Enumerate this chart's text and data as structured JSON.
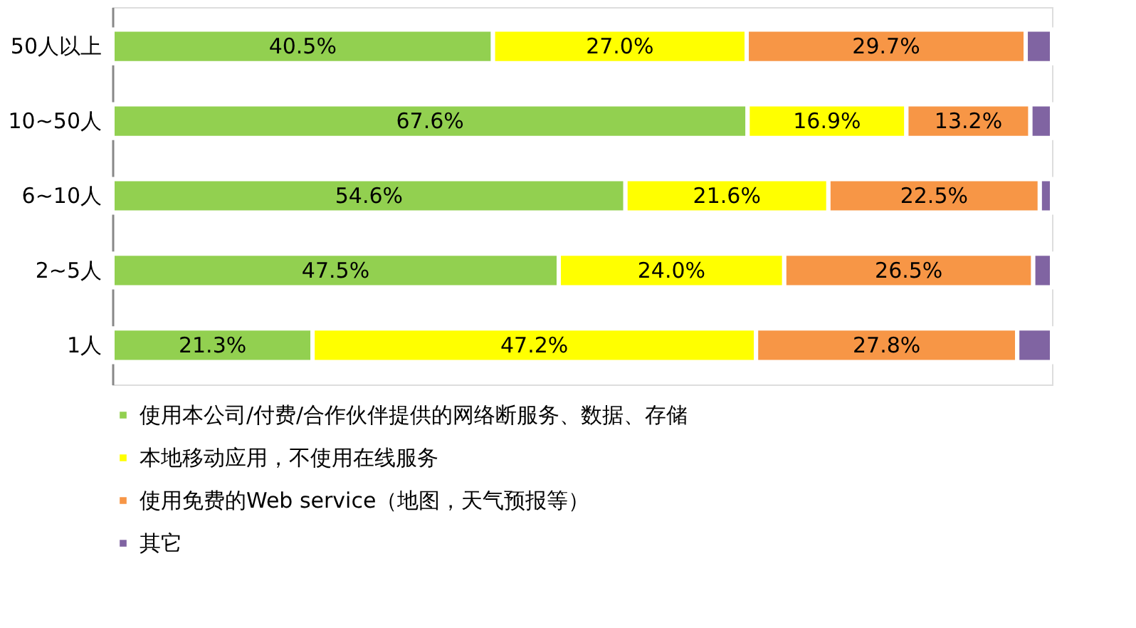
{
  "chart_data": {
    "type": "bar",
    "orientation": "horizontal",
    "stacked": true,
    "categories": [
      "50人以上",
      "10~50人",
      "6~10人",
      "2~5人",
      "1人"
    ],
    "series": [
      {
        "name": "使用本公司/付费/合作伙伴提供的网络断服务、数据、存储",
        "color": "#92d050",
        "values": [
          40.5,
          67.6,
          54.6,
          47.5,
          21.3
        ],
        "value_labels": [
          "40.5%",
          "67.6%",
          "54.6%",
          "47.5%",
          "21.3%"
        ]
      },
      {
        "name": "本地移动应用，不使用在线服务",
        "color": "#ffff00",
        "values": [
          27.0,
          16.9,
          21.6,
          24.0,
          47.2
        ],
        "value_labels": [
          "27.0%",
          "16.9%",
          "21.6%",
          "24.0%",
          "47.2%"
        ]
      },
      {
        "name": "使用免费的Web service（地图，天气预报等）",
        "color": "#f79646",
        "values": [
          29.7,
          13.2,
          22.5,
          26.5,
          27.8
        ],
        "value_labels": [
          "29.7%",
          "13.2%",
          "22.5%",
          "26.5%",
          "27.8%"
        ]
      },
      {
        "name": "其它",
        "color": "#8064a2",
        "values": [
          2.8,
          2.3,
          1.3,
          2.0,
          3.7
        ]
      }
    ],
    "xlim": [
      0,
      100
    ],
    "tick_labels": "y",
    "legend": "bottom"
  }
}
